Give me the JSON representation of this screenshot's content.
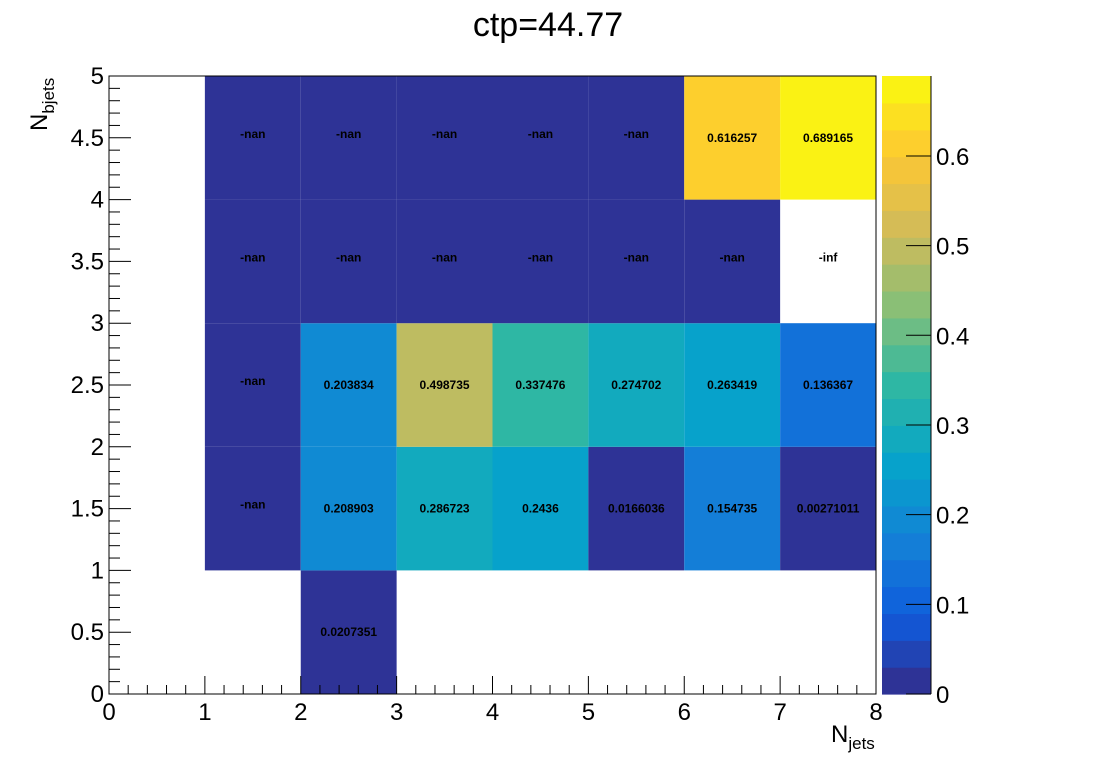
{
  "chart_data": {
    "type": "heatmap",
    "title": "ctp=44.77",
    "xlabel": "N",
    "xlabel_sub": "jets",
    "ylabel": "N",
    "ylabel_sub": "bjets",
    "xlim": [
      0,
      8
    ],
    "ylim": [
      0,
      5
    ],
    "x_major_ticks": [
      "0",
      "1",
      "2",
      "3",
      "4",
      "5",
      "6",
      "7",
      "8"
    ],
    "y_major_ticks": [
      "0",
      "0.5",
      "1",
      "1.5",
      "2",
      "2.5",
      "3",
      "3.5",
      "4",
      "4.5",
      "5"
    ],
    "zlim": [
      0,
      0.689165
    ],
    "colorbar_ticks": [
      "0",
      "0.1",
      "0.2",
      "0.3",
      "0.4",
      "0.5",
      "0.6"
    ],
    "colorbar_tick_values": [
      0,
      0.1,
      0.2,
      0.3,
      0.4,
      0.5,
      0.6
    ],
    "cells": [
      {
        "x": [
          2,
          3
        ],
        "y": [
          0,
          1
        ],
        "value": 0.0207351,
        "label": "0.0207351"
      },
      {
        "x": [
          1,
          2
        ],
        "y": [
          1,
          2
        ],
        "value": 0,
        "label": "-nan"
      },
      {
        "x": [
          2,
          3
        ],
        "y": [
          1,
          2
        ],
        "value": 0.208903,
        "label": "0.208903"
      },
      {
        "x": [
          3,
          4
        ],
        "y": [
          1,
          2
        ],
        "value": 0.286723,
        "label": "0.286723"
      },
      {
        "x": [
          4,
          5
        ],
        "y": [
          1,
          2
        ],
        "value": 0.2436,
        "label": "0.2436"
      },
      {
        "x": [
          5,
          6
        ],
        "y": [
          1,
          2
        ],
        "value": 0.0166036,
        "label": "0.0166036"
      },
      {
        "x": [
          6,
          7
        ],
        "y": [
          1,
          2
        ],
        "value": 0.154735,
        "label": "0.154735"
      },
      {
        "x": [
          7,
          8
        ],
        "y": [
          1,
          2
        ],
        "value": 0.00271011,
        "label": "0.00271011"
      },
      {
        "x": [
          1,
          2
        ],
        "y": [
          2,
          3
        ],
        "value": 0,
        "label": "-nan"
      },
      {
        "x": [
          2,
          3
        ],
        "y": [
          2,
          3
        ],
        "value": 0.203834,
        "label": "0.203834"
      },
      {
        "x": [
          3,
          4
        ],
        "y": [
          2,
          3
        ],
        "value": 0.498735,
        "label": "0.498735"
      },
      {
        "x": [
          4,
          5
        ],
        "y": [
          2,
          3
        ],
        "value": 0.337476,
        "label": "0.337476"
      },
      {
        "x": [
          5,
          6
        ],
        "y": [
          2,
          3
        ],
        "value": 0.274702,
        "label": "0.274702"
      },
      {
        "x": [
          6,
          7
        ],
        "y": [
          2,
          3
        ],
        "value": 0.263419,
        "label": "0.263419"
      },
      {
        "x": [
          7,
          8
        ],
        "y": [
          2,
          3
        ],
        "value": 0.136367,
        "label": "0.136367"
      },
      {
        "x": [
          1,
          2
        ],
        "y": [
          3,
          4
        ],
        "value": 0,
        "label": "-nan"
      },
      {
        "x": [
          2,
          3
        ],
        "y": [
          3,
          4
        ],
        "value": 0,
        "label": "-nan"
      },
      {
        "x": [
          3,
          4
        ],
        "y": [
          3,
          4
        ],
        "value": 0,
        "label": "-nan"
      },
      {
        "x": [
          4,
          5
        ],
        "y": [
          3,
          4
        ],
        "value": 0,
        "label": "-nan"
      },
      {
        "x": [
          5,
          6
        ],
        "y": [
          3,
          4
        ],
        "value": 0,
        "label": "-nan"
      },
      {
        "x": [
          6,
          7
        ],
        "y": [
          3,
          4
        ],
        "value": 0,
        "label": "-nan"
      },
      {
        "x": [
          7,
          8
        ],
        "y": [
          3,
          4
        ],
        "value": null,
        "label": "-inf"
      },
      {
        "x": [
          1,
          2
        ],
        "y": [
          4,
          5
        ],
        "value": 0,
        "label": "-nan"
      },
      {
        "x": [
          2,
          3
        ],
        "y": [
          4,
          5
        ],
        "value": 0,
        "label": "-nan"
      },
      {
        "x": [
          3,
          4
        ],
        "y": [
          4,
          5
        ],
        "value": 0,
        "label": "-nan"
      },
      {
        "x": [
          4,
          5
        ],
        "y": [
          4,
          5
        ],
        "value": 0,
        "label": "-nan"
      },
      {
        "x": [
          5,
          6
        ],
        "y": [
          4,
          5
        ],
        "value": 0,
        "label": "-nan"
      },
      {
        "x": [
          6,
          7
        ],
        "y": [
          4,
          5
        ],
        "value": 0.616257,
        "label": "0.616257"
      },
      {
        "x": [
          7,
          8
        ],
        "y": [
          4,
          5
        ],
        "value": 0.689165,
        "label": "0.689165"
      }
    ],
    "grid": false,
    "colormap": "parula",
    "colormap_stops": [
      "#352a87",
      "#0f5cdd",
      "#1481d6",
      "#06a4ca",
      "#2eb7a4",
      "#87bf77",
      "#d1bb59",
      "#fec832",
      "#f9fb0e"
    ]
  }
}
